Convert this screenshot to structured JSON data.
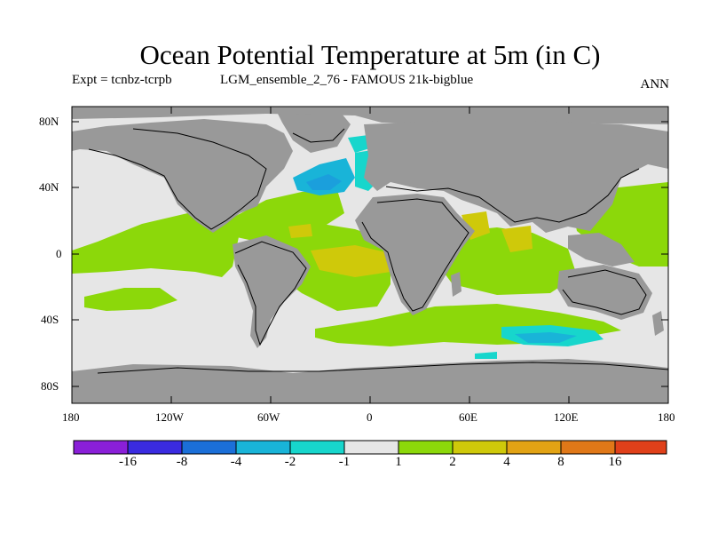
{
  "header": {
    "title": "Ocean Potential Temperature at 5m (in C)",
    "expt": "Expt = tcnbz-tcrpb",
    "subtitle": "LGM_ensemble_2_76 - FAMOUS 21k-bigblue",
    "period": "ANN"
  },
  "axes": {
    "lat_labels": [
      "80N",
      "40N",
      "0",
      "40S",
      "80S"
    ],
    "lon_labels": [
      "180",
      "120W",
      "60W",
      "0",
      "60E",
      "120E",
      "180"
    ]
  },
  "colorbar": {
    "labels": [
      "-16",
      "-8",
      "-4",
      "-2",
      "-1",
      "1",
      "2",
      "4",
      "8",
      "16"
    ],
    "colors": [
      "#8a1fd8",
      "#3a2be0",
      "#1b6fd8",
      "#19b4d8",
      "#17d6cc",
      "#e6e6e6",
      "#8cd80a",
      "#cfc90a",
      "#e2a314",
      "#e07818",
      "#e0401a"
    ]
  },
  "map_colors": {
    "land": "#999999",
    "ocean_neutral": "#e6e6e6",
    "warm_1": "#8cd80a",
    "warm_2": "#cfc90a",
    "cool_1": "#17d6cc",
    "cool_2": "#19b4d8",
    "cool_3": "#1b6fd8"
  }
}
